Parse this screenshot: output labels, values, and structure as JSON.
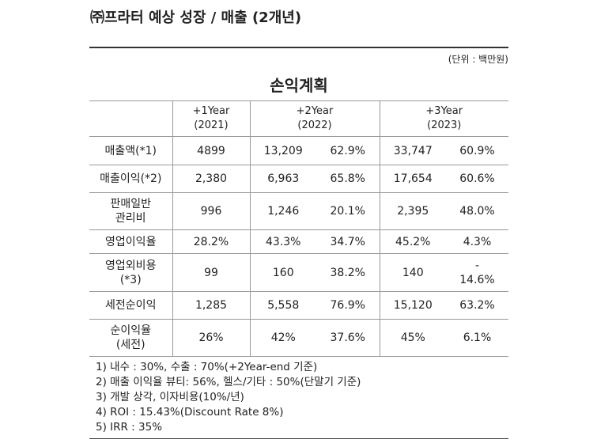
{
  "header": {
    "title": "㈜프라터 예상 성장 / 매출 (2개년)",
    "unit": "(단위 : 백만원)"
  },
  "table": {
    "caption": "손익계획",
    "columns": [
      [
        "+1Year",
        "(2021)"
      ],
      [
        "+2Year",
        "(2022)"
      ],
      [
        "+3Year",
        "(2023)"
      ]
    ],
    "rows": [
      [
        [
          "매출액(*1)"
        ],
        [
          "4899"
        ],
        [
          "13,209"
        ],
        [
          "62.9%"
        ],
        [
          "33,747"
        ],
        [
          "60.9%"
        ]
      ],
      [
        [
          "매출이익(*2)"
        ],
        [
          "2,380"
        ],
        [
          "6,963"
        ],
        [
          "65.8%"
        ],
        [
          "17,654"
        ],
        [
          "60.6%"
        ]
      ],
      [
        [
          "판매일반",
          "관리비"
        ],
        [
          "996"
        ],
        [
          "1,246"
        ],
        [
          "20.1%"
        ],
        [
          "2,395"
        ],
        [
          "48.0%"
        ]
      ],
      [
        [
          "영업이익율"
        ],
        [
          "28.2%"
        ],
        [
          "43.3%"
        ],
        [
          "34.7%"
        ],
        [
          "45.2%"
        ],
        [
          "4.3%"
        ]
      ],
      [
        [
          "영업외비용",
          "(*3)"
        ],
        [
          "99"
        ],
        [
          "160"
        ],
        [
          "38.2%"
        ],
        [
          "140"
        ],
        [
          "-",
          "14.6%"
        ]
      ],
      [
        [
          "세전순이익"
        ],
        [
          "1,285"
        ],
        [
          "5,558"
        ],
        [
          "76.9%"
        ],
        [
          "15,120"
        ],
        [
          "63.2%"
        ]
      ],
      [
        [
          "순이익율",
          "(세전)"
        ],
        [
          "26%"
        ],
        [
          "42%"
        ],
        [
          "37.6%"
        ],
        [
          "45%"
        ],
        [
          "6.1%"
        ]
      ]
    ],
    "notes": [
      "1) 내수 : 30%, 수출 : 70%(+2Year-end 기준)",
      "2) 매출 이익율 뷰티: 56%, 헬스/기타 : 50%(단말기 기준)",
      "3) 개발 상각, 이자비용(10%/년)",
      "4) ROI : 15.43%(Discount Rate 8%)",
      "5) IRR : 35%"
    ]
  }
}
